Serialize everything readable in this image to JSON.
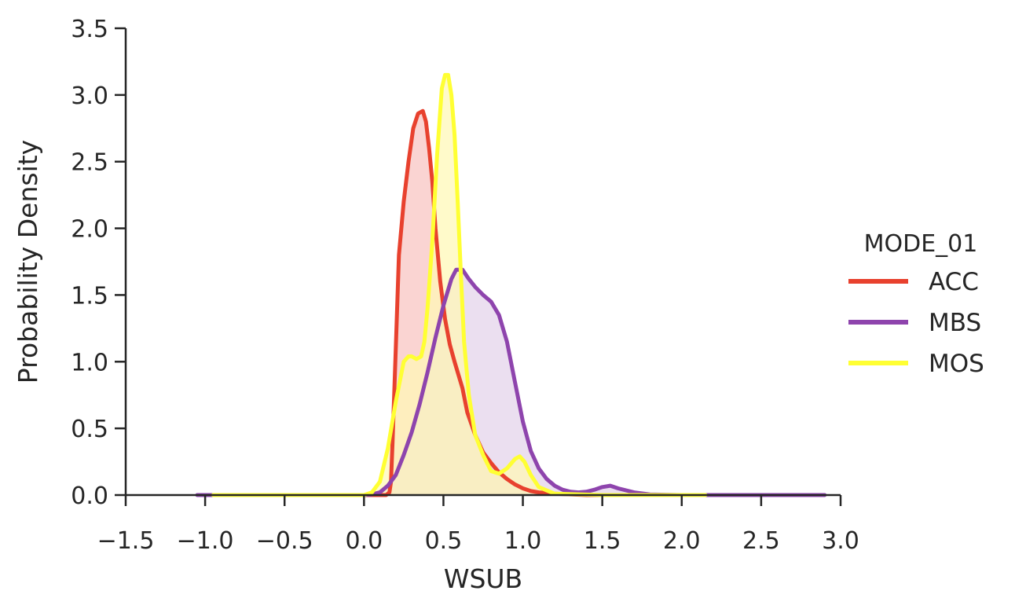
{
  "chart_data": {
    "type": "area",
    "xlabel": "WSUB",
    "ylabel": "Probability Density",
    "xlim": [
      -1.5,
      3.0
    ],
    "ylim": [
      0.0,
      3.5
    ],
    "xticks": [
      "−1.5",
      "−1.0",
      "−0.5",
      "0.0",
      "0.5",
      "1.0",
      "1.5",
      "2.0",
      "2.5",
      "3.0"
    ],
    "xtick_values": [
      -1.5,
      -1.0,
      -0.5,
      0.0,
      0.5,
      1.0,
      1.5,
      2.0,
      2.5,
      3.0
    ],
    "yticks": [
      "0.0",
      "0.5",
      "1.0",
      "1.5",
      "2.0",
      "2.5",
      "3.0",
      "3.5"
    ],
    "ytick_values": [
      0.0,
      0.5,
      1.0,
      1.5,
      2.0,
      2.5,
      3.0,
      3.5
    ],
    "grid": false,
    "legend": {
      "title": "MODE_01",
      "placement": "right"
    },
    "series": [
      {
        "name": "ACC",
        "color": "#e8412e",
        "fill": "#f8c4c0",
        "x": [
          -0.5,
          0.0,
          0.14,
          0.16,
          0.17,
          0.18,
          0.2,
          0.22,
          0.25,
          0.28,
          0.31,
          0.34,
          0.37,
          0.39,
          0.41,
          0.43,
          0.45,
          0.48,
          0.51,
          0.54,
          0.57,
          0.62,
          0.65,
          0.7,
          0.75,
          0.8,
          0.85,
          0.9,
          0.95,
          1.0,
          1.05,
          1.1,
          1.2,
          1.4,
          1.8
        ],
        "y": [
          0.0,
          0.0,
          0.0,
          0.02,
          0.1,
          0.4,
          1.1,
          1.8,
          2.2,
          2.5,
          2.75,
          2.86,
          2.88,
          2.8,
          2.6,
          2.35,
          2.0,
          1.6,
          1.32,
          1.13,
          1.0,
          0.8,
          0.62,
          0.45,
          0.32,
          0.24,
          0.17,
          0.12,
          0.08,
          0.05,
          0.03,
          0.02,
          0.01,
          0.0,
          0.0
        ]
      },
      {
        "name": "MBS",
        "color": "#8e44ad",
        "fill": "#e3d3ea",
        "x": [
          -1.05,
          -0.5,
          0.0,
          0.05,
          0.1,
          0.15,
          0.2,
          0.25,
          0.3,
          0.35,
          0.4,
          0.45,
          0.5,
          0.55,
          0.58,
          0.62,
          0.66,
          0.7,
          0.75,
          0.8,
          0.85,
          0.9,
          0.95,
          1.0,
          1.05,
          1.1,
          1.15,
          1.2,
          1.25,
          1.3,
          1.35,
          1.4,
          1.45,
          1.5,
          1.55,
          1.6,
          1.7,
          1.8,
          2.0,
          2.5,
          2.9
        ],
        "y": [
          0.0,
          0.0,
          0.0,
          0.005,
          0.02,
          0.07,
          0.15,
          0.3,
          0.47,
          0.68,
          0.92,
          1.18,
          1.42,
          1.62,
          1.69,
          1.69,
          1.62,
          1.56,
          1.5,
          1.45,
          1.35,
          1.15,
          0.85,
          0.55,
          0.33,
          0.2,
          0.12,
          0.07,
          0.04,
          0.025,
          0.02,
          0.025,
          0.04,
          0.06,
          0.07,
          0.05,
          0.02,
          0.005,
          0.0,
          0.0,
          0.0
        ]
      },
      {
        "name": "MOS",
        "color": "#ffff33",
        "fill": "#fff8b5",
        "x": [
          -0.95,
          -0.5,
          0.0,
          0.05,
          0.1,
          0.15,
          0.2,
          0.25,
          0.28,
          0.3,
          0.33,
          0.36,
          0.38,
          0.4,
          0.43,
          0.46,
          0.49,
          0.51,
          0.53,
          0.55,
          0.57,
          0.59,
          0.61,
          0.63,
          0.66,
          0.7,
          0.75,
          0.8,
          0.85,
          0.9,
          0.95,
          0.98,
          1.01,
          1.05,
          1.1,
          1.2,
          1.5,
          2.0,
          2.15
        ],
        "y": [
          0.0,
          0.0,
          0.0,
          0.02,
          0.1,
          0.35,
          0.7,
          1.0,
          1.04,
          1.04,
          1.02,
          1.04,
          1.15,
          1.4,
          1.9,
          2.55,
          3.05,
          3.15,
          3.15,
          3.0,
          2.7,
          2.2,
          1.65,
          1.15,
          0.75,
          0.45,
          0.3,
          0.18,
          0.16,
          0.2,
          0.27,
          0.29,
          0.25,
          0.15,
          0.06,
          0.01,
          0.0,
          0.0,
          0.0
        ]
      }
    ]
  }
}
